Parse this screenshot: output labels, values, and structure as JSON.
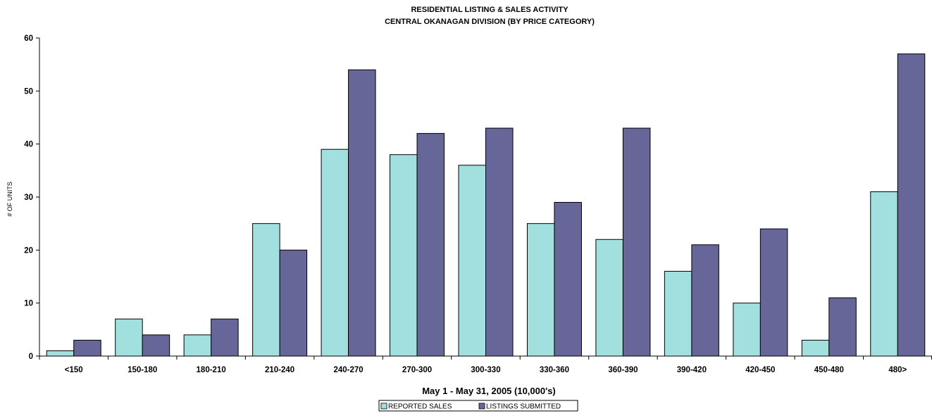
{
  "chart_data": {
    "type": "bar",
    "title": "RESIDENTIAL LISTING & SALES ACTIVITY",
    "subtitle": "CENTRAL OKANAGAN DIVISION (BY PRICE CATEGORY)",
    "xlabel": "May 1 - May 31, 2005 (10,000's)",
    "ylabel": "# OF UNITS",
    "ylim": [
      0,
      60
    ],
    "yticks": [
      0,
      10,
      20,
      30,
      40,
      50,
      60
    ],
    "grid": false,
    "legend_position": "bottom-center",
    "categories": [
      "<150",
      "150-180",
      "180-210",
      "210-240",
      "240-270",
      "270-300",
      "300-330",
      "330-360",
      "360-390",
      "390-420",
      "420-450",
      "450-480",
      "480>"
    ],
    "series": [
      {
        "name": "REPORTED SALES",
        "color": "#a2e0e0",
        "values": [
          1,
          7,
          4,
          25,
          39,
          38,
          36,
          25,
          22,
          16,
          10,
          3,
          31
        ]
      },
      {
        "name": "LISTINGS SUBMITTED",
        "color": "#666699",
        "values": [
          3,
          4,
          7,
          20,
          54,
          42,
          43,
          29,
          43,
          21,
          24,
          11,
          57
        ]
      }
    ]
  }
}
